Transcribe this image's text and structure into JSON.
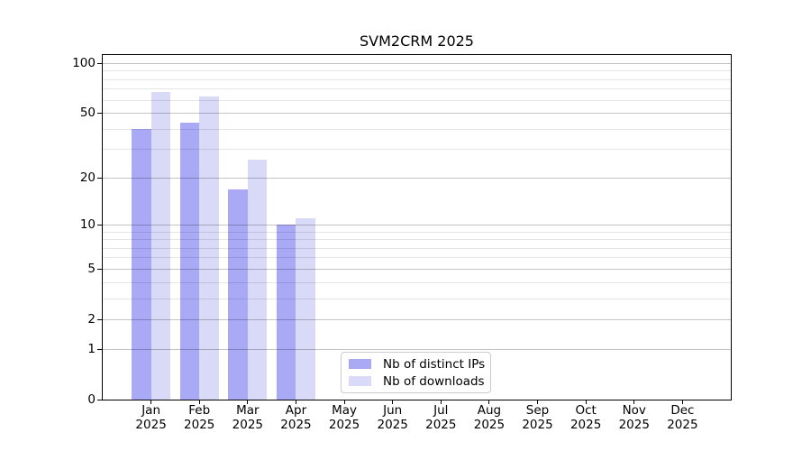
{
  "chart_data": {
    "type": "bar",
    "title": "SVM2CRM 2025",
    "categories": [
      {
        "month": "Jan",
        "year": "2025"
      },
      {
        "month": "Feb",
        "year": "2025"
      },
      {
        "month": "Mar",
        "year": "2025"
      },
      {
        "month": "Apr",
        "year": "2025"
      },
      {
        "month": "May",
        "year": "2025"
      },
      {
        "month": "Jun",
        "year": "2025"
      },
      {
        "month": "Jul",
        "year": "2025"
      },
      {
        "month": "Aug",
        "year": "2025"
      },
      {
        "month": "Sep",
        "year": "2025"
      },
      {
        "month": "Oct",
        "year": "2025"
      },
      {
        "month": "Nov",
        "year": "2025"
      },
      {
        "month": "Dec",
        "year": "2025"
      }
    ],
    "series": [
      {
        "name": "Nb of distinct IPs",
        "color": "#a9a9f6",
        "values": [
          40,
          44,
          17,
          10,
          0,
          0,
          0,
          0,
          0,
          0,
          0,
          0
        ]
      },
      {
        "name": "Nb of downloads",
        "color": "#d9d9f8",
        "values": [
          67,
          63,
          26,
          11,
          0,
          0,
          0,
          0,
          0,
          0,
          0,
          0
        ]
      }
    ],
    "yscale": "log1p",
    "yticks": [
      100,
      50,
      20,
      10,
      5,
      2,
      1,
      0
    ],
    "yticks_minor": [
      90,
      80,
      70,
      60,
      40,
      30,
      9,
      8,
      7,
      6,
      4,
      3
    ],
    "ylim": [
      0,
      112.3
    ],
    "xlabel": "",
    "ylabel": "",
    "grid": true,
    "legend_position": "lower-center-left"
  }
}
